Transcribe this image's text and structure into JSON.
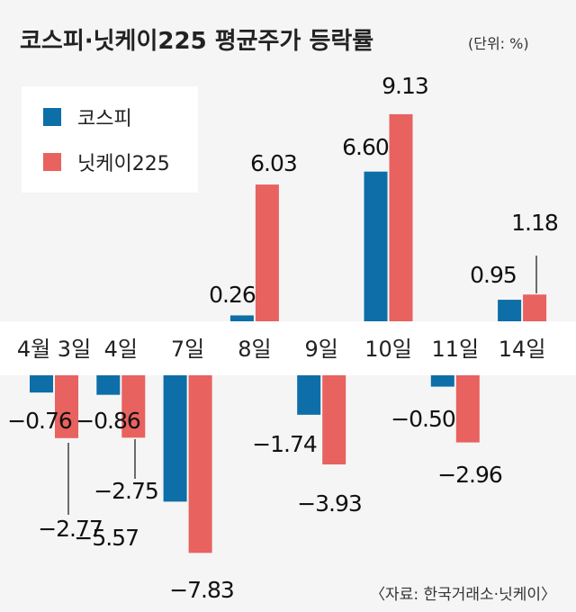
{
  "chart_data": {
    "type": "bar",
    "title": "코스피·닛케이225 평균주가 등락률",
    "unit": "(단위: %)",
    "source": "〈자료: 한국거래소·닛케이〉",
    "legend_position": "top-left",
    "categories": [
      "4월 3일",
      "4일",
      "7일",
      "8일",
      "9일",
      "10일",
      "11일",
      "14일"
    ],
    "series": [
      {
        "name": "코스피",
        "color": "#0e6ea8",
        "values": [
          -0.76,
          -0.86,
          -5.57,
          0.26,
          -1.74,
          6.6,
          -0.5,
          0.95
        ],
        "labels": [
          "−0.76",
          "−0.86",
          "−5.57",
          "0.26",
          "−1.74",
          "6.60",
          "−0.50",
          "0.95"
        ]
      },
      {
        "name": "닛케이225",
        "color": "#e8625f",
        "values": [
          -2.77,
          -2.75,
          -7.83,
          6.03,
          -3.93,
          9.13,
          -2.96,
          1.18
        ],
        "labels": [
          "−2.77",
          "−2.75",
          "−7.83",
          "6.03",
          "−3.93",
          "9.13",
          "−2.96",
          "1.18"
        ]
      }
    ]
  }
}
